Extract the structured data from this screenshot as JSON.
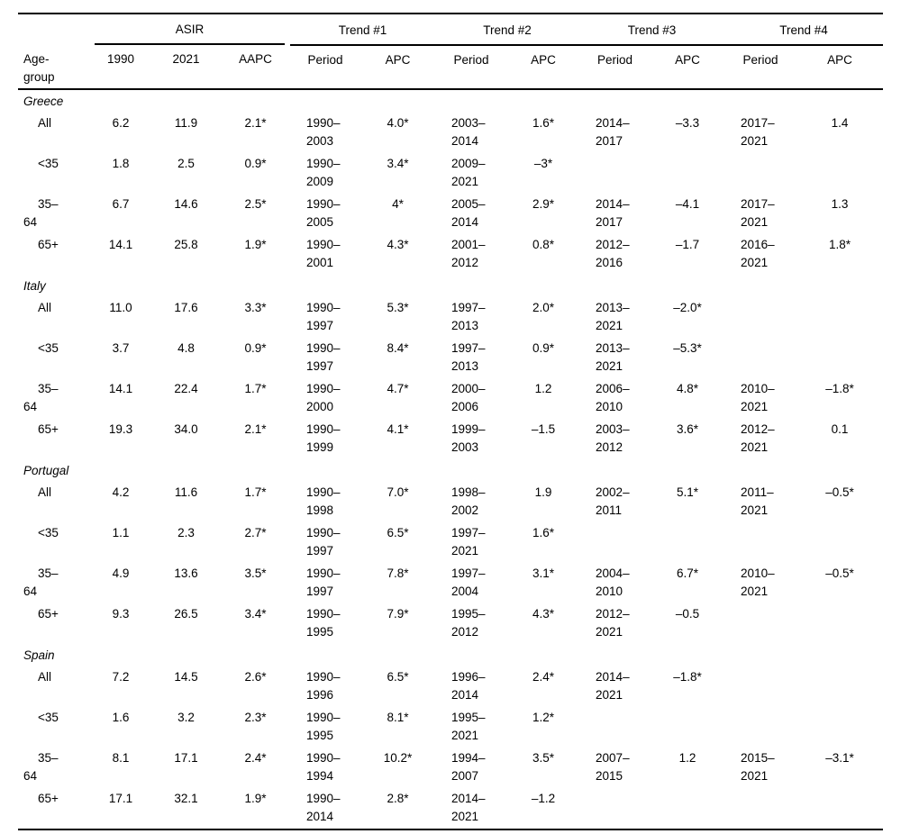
{
  "table": {
    "row_header": "Age-\ngroup",
    "groups": [
      {
        "label": "ASIR",
        "cols": [
          "1990",
          "2021",
          "AAPC"
        ]
      },
      {
        "label": "Trend #1",
        "cols": [
          "Period",
          "APC"
        ]
      },
      {
        "label": "Trend #2",
        "cols": [
          "Period",
          "APC"
        ]
      },
      {
        "label": "Trend #3",
        "cols": [
          "Period",
          "APC"
        ]
      },
      {
        "label": "Trend #4",
        "cols": [
          "Period",
          "APC"
        ]
      }
    ],
    "sections": [
      {
        "country": "Greece",
        "rows": [
          {
            "age": "All",
            "v": [
              "6.2",
              "11.9",
              "2.1*",
              "1990–\n2003",
              "4.0*",
              "2003–\n2014",
              "1.6*",
              "2014–\n2017",
              "–3.3",
              "2017–\n2021",
              "1.4"
            ]
          },
          {
            "age": "<35",
            "v": [
              "1.8",
              "2.5",
              "0.9*",
              "1990–\n2009",
              "3.4*",
              "2009–\n2021",
              "–3*",
              "",
              "",
              "",
              ""
            ]
          },
          {
            "age": "35–\n64",
            "v": [
              "6.7",
              "14.6",
              "2.5*",
              "1990–\n2005",
              "4*",
              "2005–\n2014",
              "2.9*",
              "2014–\n2017",
              "–4.1",
              "2017–\n2021",
              "1.3"
            ]
          },
          {
            "age": "65+",
            "v": [
              "14.1",
              "25.8",
              "1.9*",
              "1990–\n2001",
              "4.3*",
              "2001–\n2012",
              "0.8*",
              "2012–\n2016",
              "–1.7",
              "2016–\n2021",
              "1.8*"
            ]
          }
        ]
      },
      {
        "country": "Italy",
        "rows": [
          {
            "age": "All",
            "v": [
              "11.0",
              "17.6",
              "3.3*",
              "1990–\n1997",
              "5.3*",
              "1997–\n2013",
              "2.0*",
              "2013–\n2021",
              "–2.0*",
              "",
              ""
            ]
          },
          {
            "age": "<35",
            "v": [
              "3.7",
              "4.8",
              "0.9*",
              "1990–\n1997",
              "8.4*",
              "1997–\n2013",
              "0.9*",
              "2013–\n2021",
              "–5.3*",
              "",
              ""
            ]
          },
          {
            "age": "35–\n64",
            "v": [
              "14.1",
              "22.4",
              "1.7*",
              "1990–\n2000",
              "4.7*",
              "2000–\n2006",
              "1.2",
              "2006–\n2010",
              "4.8*",
              "2010–\n2021",
              "–1.8*"
            ]
          },
          {
            "age": "65+",
            "v": [
              "19.3",
              "34.0",
              "2.1*",
              "1990–\n1999",
              "4.1*",
              "1999–\n2003",
              "–1.5",
              "2003–\n2012",
              "3.6*",
              "2012–\n2021",
              "0.1"
            ]
          }
        ]
      },
      {
        "country": "Portugal",
        "rows": [
          {
            "age": "All",
            "v": [
              "4.2",
              "11.6",
              "1.7*",
              "1990–\n1998",
              "7.0*",
              "1998–\n2002",
              "1.9",
              "2002–\n2011",
              "5.1*",
              "2011–\n2021",
              "–0.5*"
            ]
          },
          {
            "age": "<35",
            "v": [
              "1.1",
              "2.3",
              "2.7*",
              "1990–\n1997",
              "6.5*",
              "1997–\n2021",
              "1.6*",
              "",
              "",
              "",
              ""
            ]
          },
          {
            "age": "35–\n64",
            "v": [
              "4.9",
              "13.6",
              "3.5*",
              "1990–\n1997",
              "7.8*",
              "1997–\n2004",
              "3.1*",
              "2004–\n2010",
              "6.7*",
              "2010–\n2021",
              "–0.5*"
            ]
          },
          {
            "age": "65+",
            "v": [
              "9.3",
              "26.5",
              "3.4*",
              "1990–\n1995",
              "7.9*",
              "1995–\n2012",
              "4.3*",
              "2012–\n2021",
              "–0.5",
              "",
              ""
            ]
          }
        ]
      },
      {
        "country": "Spain",
        "rows": [
          {
            "age": "All",
            "v": [
              "7.2",
              "14.5",
              "2.6*",
              "1990–\n1996",
              "6.5*",
              "1996–\n2014",
              "2.4*",
              "2014–\n2021",
              "–1.8*",
              "",
              ""
            ]
          },
          {
            "age": "<35",
            "v": [
              "1.6",
              "3.2",
              "2.3*",
              "1990–\n1995",
              "8.1*",
              "1995–\n2021",
              "1.2*",
              "",
              "",
              "",
              ""
            ]
          },
          {
            "age": "35–\n64",
            "v": [
              "8.1",
              "17.1",
              "2.4*",
              "1990–\n1994",
              "10.2*",
              "1994–\n2007",
              "3.5*",
              "2007–\n2015",
              "1.2",
              "2015–\n2021",
              "–3.1*"
            ]
          },
          {
            "age": "65+",
            "v": [
              "17.1",
              "32.1",
              "1.9*",
              "1990–\n2014",
              "2.8*",
              "2014–\n2021",
              "–1.2",
              "",
              "",
              "",
              ""
            ]
          }
        ]
      }
    ]
  }
}
